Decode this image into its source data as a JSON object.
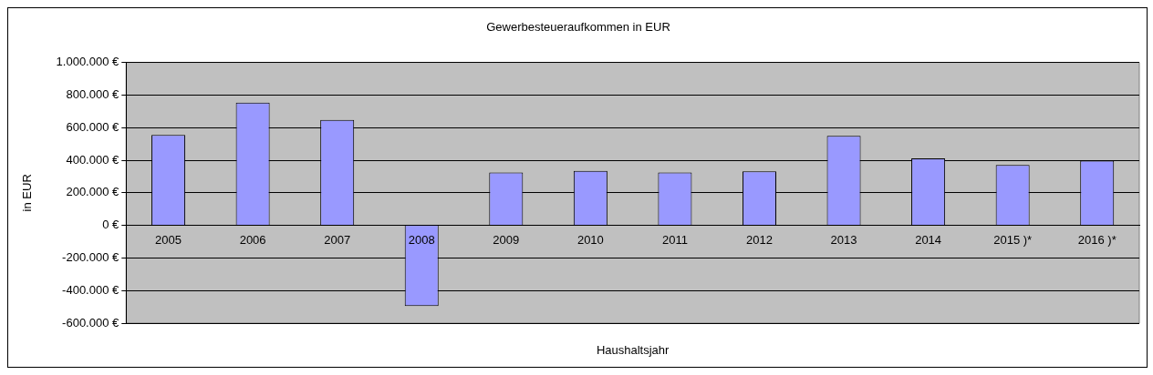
{
  "chart_data": {
    "type": "bar",
    "title": "Gewerbesteueraufkommen in EUR",
    "xlabel": "Haushaltsjahr",
    "ylabel": "in EUR",
    "categories": [
      "2005",
      "2006",
      "2007",
      "2008",
      "2009",
      "2010",
      "2011",
      "2012",
      "2013",
      "2014",
      "2015 )*",
      "2016 )*"
    ],
    "values": [
      555000,
      754000,
      647000,
      -495000,
      325000,
      335000,
      324000,
      332000,
      549000,
      411000,
      370000,
      397000
    ],
    "color": "#9999ff",
    "ylim": [
      -600000,
      1000000
    ],
    "yticks": [
      {
        "value": -600000,
        "label": "-600.000 €"
      },
      {
        "value": -400000,
        "label": "-400.000 €"
      },
      {
        "value": -200000,
        "label": "-200.000 €"
      },
      {
        "value": 0,
        "label": "0 €"
      },
      {
        "value": 200000,
        "label": "200.000 €"
      },
      {
        "value": 400000,
        "label": "400.000 €"
      },
      {
        "value": 600000,
        "label": "600.000 €"
      },
      {
        "value": 800000,
        "label": "800.000 €"
      },
      {
        "value": 1000000,
        "label": "1.000.000 €"
      }
    ],
    "grid": "y",
    "legend": false
  }
}
